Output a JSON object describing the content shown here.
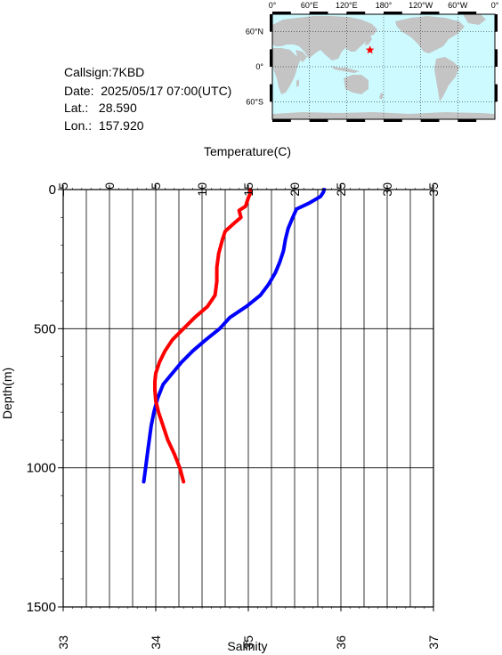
{
  "station": {
    "callsign_label": "Callsign:",
    "callsign": "7KBD",
    "date_label": "Date:",
    "date": "2025/05/17 07:00(UTC)",
    "lat_label": "Lat.:",
    "lat": "28.590",
    "lon_label": "Lon.:",
    "lon": "157.920"
  },
  "map": {
    "lon_labels": [
      "0°",
      "60°E",
      "120°E",
      "180°",
      "120°W",
      "60°W",
      "0°"
    ],
    "lat_labels": [
      "60°N",
      "0°",
      "60°S"
    ],
    "ocean_color": "#cdfaff",
    "land_color": "#c4c4c4",
    "marker": {
      "lat": 28.59,
      "lon": 157.92,
      "color": "#ff0000",
      "icon": "star-icon"
    }
  },
  "chart_data": {
    "type": "line",
    "ylabel": "Depth(m)",
    "ylim": [
      0,
      1500
    ],
    "y_ticks": [
      0,
      500,
      1000,
      1500
    ],
    "top_axis": {
      "label": "Temperature(C)",
      "range": [
        -5,
        35
      ],
      "ticks": [
        -5,
        0,
        5,
        10,
        15,
        20,
        25,
        30,
        35
      ]
    },
    "bottom_axis": {
      "label": "Salinity",
      "range": [
        33,
        37
      ],
      "ticks": [
        33,
        34,
        35,
        36,
        37
      ]
    },
    "grid": true,
    "series": [
      {
        "quantity": "temperature",
        "axis": "top",
        "color": "#0000ff",
        "depth": [
          0,
          10,
          25,
          50,
          70,
          100,
          140,
          180,
          220,
          260,
          300,
          340,
          380,
          420,
          460,
          500,
          540,
          580,
          620,
          660,
          700,
          750,
          800,
          850,
          900,
          950,
          1000,
          1050
        ],
        "values": [
          23.2,
          23.1,
          22.8,
          21.5,
          20.2,
          19.8,
          19.3,
          19.0,
          18.8,
          18.4,
          17.9,
          17.2,
          16.3,
          14.8,
          13.0,
          11.9,
          10.4,
          9.0,
          7.8,
          6.8,
          5.8,
          5.2,
          4.8,
          4.5,
          4.3,
          4.1,
          3.9,
          3.7
        ]
      },
      {
        "quantity": "salinity",
        "axis": "bottom",
        "color": "#ff0000",
        "depth": [
          0,
          15,
          30,
          60,
          75,
          100,
          120,
          150,
          180,
          230,
          280,
          330,
          380,
          420,
          460,
          500,
          540,
          580,
          620,
          660,
          690,
          720,
          760,
          800,
          850,
          900,
          950,
          1000,
          1050
        ],
        "values": [
          35.02,
          35.02,
          35.0,
          34.97,
          34.9,
          34.92,
          34.85,
          34.75,
          34.72,
          34.68,
          34.66,
          34.66,
          34.64,
          34.56,
          34.42,
          34.3,
          34.18,
          34.1,
          34.04,
          34.0,
          33.99,
          33.99,
          34.0,
          34.03,
          34.08,
          34.13,
          34.2,
          34.26,
          34.3
        ]
      }
    ]
  }
}
